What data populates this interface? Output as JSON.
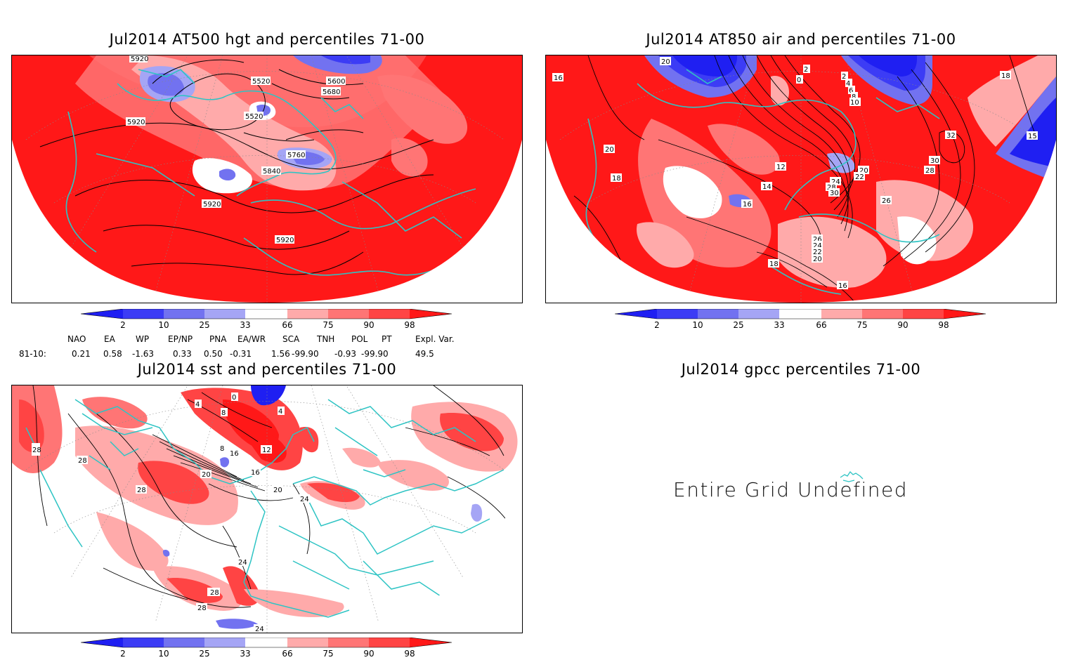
{
  "panels": [
    {
      "title": "Jul2014 AT500 hgt and percentiles 71-00",
      "contour_labels": [
        "5920",
        "5520",
        "5600",
        "5680",
        "5520",
        "5920",
        "5760",
        "5840",
        "5920",
        "5920"
      ]
    },
    {
      "title": "Jul2014 AT850 air and percentiles 71-00",
      "contour_labels": [
        "16",
        "20",
        "2",
        "0",
        "2",
        "4",
        "6",
        "8",
        "10",
        "18",
        "32",
        "30",
        "28",
        "15",
        "12",
        "14",
        "16",
        "20",
        "22",
        "24",
        "28",
        "30",
        "26",
        "26",
        "24",
        "22",
        "20",
        "18",
        "16",
        "20",
        "18"
      ]
    },
    {
      "title": "Jul2014 sst and percentiles 71-00",
      "contour_labels": [
        "28",
        "28",
        "28",
        "28",
        "8",
        "12",
        "16",
        "20",
        "16",
        "20",
        "24",
        "24",
        "28",
        "28",
        "24",
        "4",
        "8",
        "4",
        "0"
      ]
    },
    {
      "title": "Jul2014 gpcc percentiles 71-00",
      "message": "Entire Grid Undefined"
    }
  ],
  "colorbar": {
    "ticks": [
      "2",
      "10",
      "25",
      "33",
      "66",
      "75",
      "90",
      "98"
    ],
    "colors": {
      "p2": "#1f1ff2",
      "p10": "#3c3cf5",
      "p25": "#7272f0",
      "p33": "#a5a5f5",
      "p66": "#ffaaaa",
      "p75": "#ff7575",
      "p90": "#ff4444",
      "p98": "#ff1818"
    }
  },
  "indices": {
    "headers": [
      "NAO",
      "EA",
      "WP",
      "EP/NP",
      "PNA",
      "EA/WR",
      "SCA",
      "TNH",
      "POL",
      "PT",
      "Expl. Var."
    ],
    "row_label": "81-10:",
    "values": [
      "0.21",
      "0.58",
      "-1.63",
      "0.33",
      "0.50",
      "-0.31",
      "1.56",
      "-99.90",
      "-0.93",
      "-99.90",
      "49.5"
    ]
  },
  "colors": {
    "coast": "#2ec4c4",
    "contour": "#000000",
    "grid": "#888888"
  }
}
